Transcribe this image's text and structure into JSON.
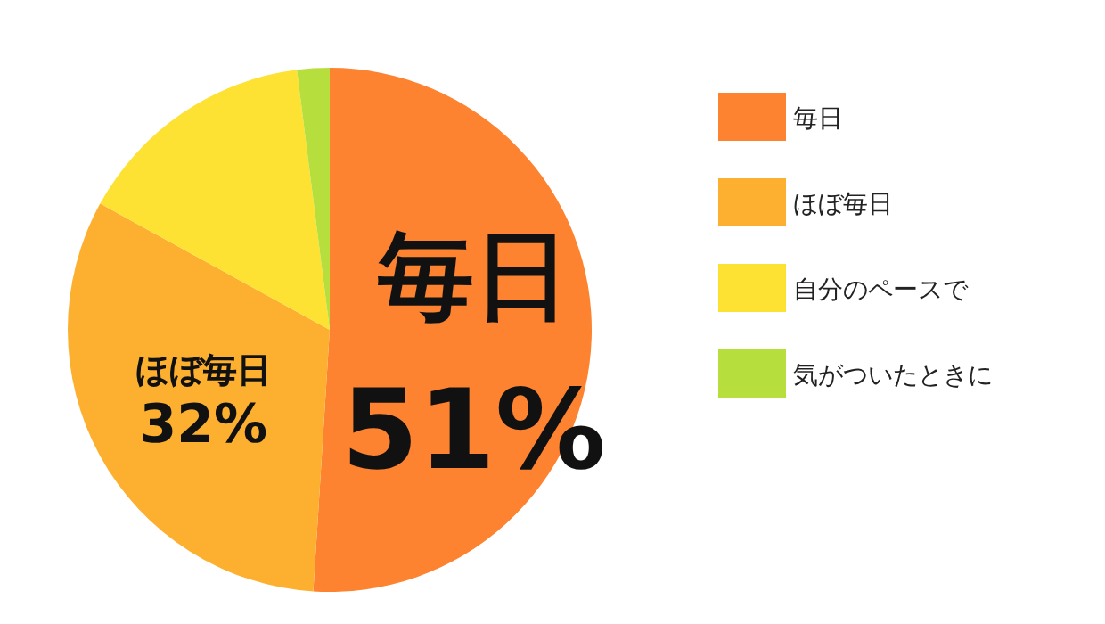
{
  "chart_data": {
    "type": "pie",
    "categories": [
      "毎日",
      "ほぼ毎日",
      "自分のペースで",
      "気がついたときに"
    ],
    "values": [
      51,
      32,
      15,
      2
    ],
    "colors": [
      "#fd8330",
      "#fdb02f",
      "#fde233",
      "#b6df3d"
    ],
    "value_labels": [
      "51%",
      "32%",
      null,
      null
    ],
    "legend": "right"
  }
}
